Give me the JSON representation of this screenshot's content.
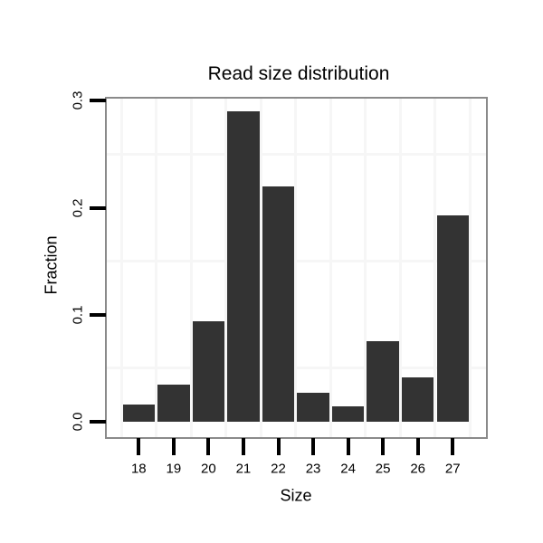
{
  "chart_data": {
    "type": "bar",
    "title": "Read size distribution",
    "xlabel": "Size",
    "ylabel": "Fraction",
    "categories": [
      "18",
      "19",
      "20",
      "21",
      "22",
      "23",
      "24",
      "25",
      "26",
      "27"
    ],
    "values": [
      0.016,
      0.035,
      0.094,
      0.29,
      0.22,
      0.027,
      0.014,
      0.075,
      0.041,
      0.193
    ],
    "ylim": [
      -0.014,
      0.302
    ],
    "y_tick_values": [
      0.0,
      0.1,
      0.2,
      0.3
    ],
    "y_tick_labels": [
      "0.0",
      "0.1",
      "0.2",
      "0.3"
    ],
    "y_minor_gridlines": [
      0.05,
      0.15,
      0.25
    ],
    "x_minor_gridlines_between_categories": true,
    "grid": "minor-only",
    "legend_position": "none",
    "colors": {
      "bar": "#333333",
      "panel_background": "#ffffff",
      "figure_background": "#ffffff",
      "minor_gridline": "#f6f6f6",
      "panel_border": "#8a8a8a",
      "tick": "#000000",
      "text": "#000000"
    }
  }
}
